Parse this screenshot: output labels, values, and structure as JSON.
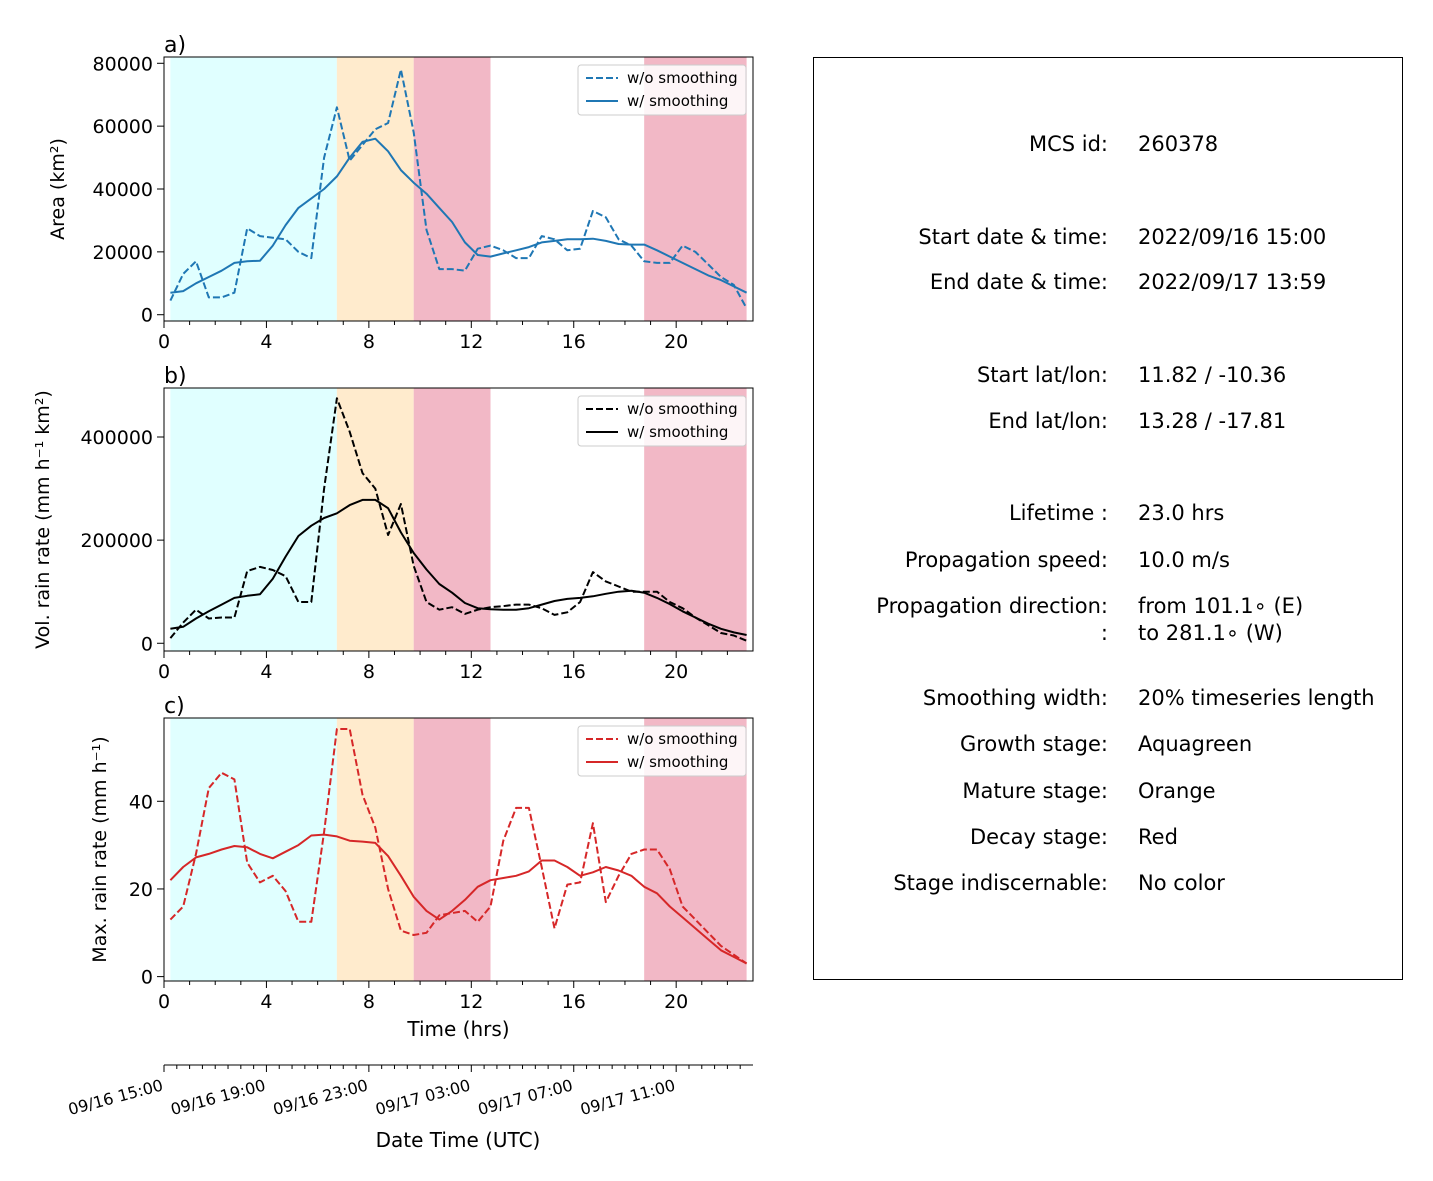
{
  "chart_data": [
    {
      "type": "line",
      "panel_label": "a)",
      "ylabel": "Area  (km²)",
      "xlim": [
        0,
        23
      ],
      "ylim": [
        -2000,
        82000
      ],
      "xticks": [
        "0",
        "4",
        "8",
        "12",
        "16",
        "20"
      ],
      "yticks": [
        "0",
        "20000",
        "40000",
        "60000",
        "80000"
      ],
      "color": "#1f77b4",
      "legend": [
        "w/o smoothing",
        "w/ smoothing"
      ],
      "legend_position": "top-right",
      "stages": [
        {
          "name": "growth",
          "start": 0.25,
          "end": 6.75,
          "color": "#e0ffff"
        },
        {
          "name": "mature",
          "start": 6.75,
          "end": 9.75,
          "color": "#ffebcd"
        },
        {
          "name": "decay",
          "start": 9.75,
          "end": 12.75,
          "color": "#f2b8c6"
        },
        {
          "name": "decay",
          "start": 18.75,
          "end": 22.75,
          "color": "#f2b8c6"
        }
      ],
      "series": [
        {
          "name": "w/o smoothing",
          "style": "dashed",
          "x": [
            0.25,
            0.75,
            1.25,
            1.75,
            2.25,
            2.75,
            3.25,
            3.75,
            4.25,
            4.75,
            5.25,
            5.75,
            6.25,
            6.75,
            7.25,
            7.75,
            8.25,
            8.75,
            9.25,
            9.75,
            10.25,
            10.75,
            11.25,
            11.75,
            12.25,
            12.75,
            13.25,
            13.75,
            14.25,
            14.75,
            15.25,
            15.75,
            16.25,
            16.75,
            17.25,
            17.75,
            18.25,
            18.75,
            19.25,
            19.75,
            20.25,
            20.75,
            21.25,
            21.75,
            22.25,
            22.75
          ],
          "y": [
            4500,
            13000,
            17000,
            5500,
            5500,
            7000,
            27500,
            25000,
            24500,
            24000,
            20000,
            18000,
            50000,
            66000,
            49000,
            54000,
            59000,
            61000,
            78000,
            58000,
            27000,
            14500,
            14500,
            14000,
            21000,
            22000,
            20500,
            18000,
            18000,
            25000,
            24000,
            20500,
            21000,
            33000,
            31000,
            24000,
            22000,
            17000,
            16500,
            16500,
            22000,
            20000,
            16000,
            12000,
            9500,
            2000
          ]
        },
        {
          "name": "w/ smoothing",
          "style": "solid",
          "x": [
            0.25,
            0.75,
            1.25,
            1.75,
            2.25,
            2.75,
            3.25,
            3.75,
            4.25,
            4.75,
            5.25,
            5.75,
            6.25,
            6.75,
            7.25,
            7.75,
            8.25,
            8.75,
            9.25,
            9.75,
            10.25,
            10.75,
            11.25,
            11.75,
            12.25,
            12.75,
            13.25,
            13.75,
            14.25,
            14.75,
            15.25,
            15.75,
            16.25,
            16.75,
            17.25,
            17.75,
            18.25,
            18.75,
            19.25,
            19.75,
            20.25,
            20.75,
            21.25,
            21.75,
            22.25,
            22.75
          ],
          "y": [
            7000,
            7500,
            10000,
            12000,
            14000,
            16500,
            17000,
            17200,
            22000,
            28500,
            34000,
            37000,
            40000,
            44000,
            50000,
            55000,
            56000,
            52000,
            46000,
            42000,
            38500,
            34000,
            29500,
            23000,
            19000,
            18500,
            19500,
            20500,
            21500,
            23000,
            23500,
            24000,
            24000,
            24200,
            23500,
            22500,
            22300,
            22300,
            20500,
            18500,
            16500,
            14500,
            12500,
            11000,
            9000,
            7000
          ]
        }
      ]
    },
    {
      "type": "line",
      "panel_label": "b)",
      "ylabel": "Vol. rain rate (mm h⁻¹ km²)",
      "xlim": [
        0,
        23
      ],
      "ylim": [
        -15000,
        495000
      ],
      "xticks": [
        "0",
        "4",
        "8",
        "12",
        "16",
        "20"
      ],
      "yticks": [
        "0",
        "200000",
        "400000"
      ],
      "color": "#000000",
      "legend": [
        "w/o smoothing",
        "w/ smoothing"
      ],
      "legend_position": "top-right",
      "stages": [
        {
          "name": "growth",
          "start": 0.25,
          "end": 6.75,
          "color": "#e0ffff"
        },
        {
          "name": "mature",
          "start": 6.75,
          "end": 9.75,
          "color": "#ffebcd"
        },
        {
          "name": "decay",
          "start": 9.75,
          "end": 12.75,
          "color": "#f2b8c6"
        },
        {
          "name": "decay",
          "start": 18.75,
          "end": 22.75,
          "color": "#f2b8c6"
        }
      ],
      "series": [
        {
          "name": "w/o smoothing",
          "style": "dashed",
          "x": [
            0.25,
            0.75,
            1.25,
            1.75,
            2.25,
            2.75,
            3.25,
            3.75,
            4.25,
            4.75,
            5.25,
            5.75,
            6.25,
            6.75,
            7.25,
            7.75,
            8.25,
            8.75,
            9.25,
            9.75,
            10.25,
            10.75,
            11.25,
            11.75,
            12.25,
            12.75,
            13.25,
            13.75,
            14.25,
            14.75,
            15.25,
            15.75,
            16.25,
            16.75,
            17.25,
            17.75,
            18.25,
            18.75,
            19.25,
            19.75,
            20.25,
            20.75,
            21.25,
            21.75,
            22.25,
            22.75
          ],
          "y": [
            10000,
            40000,
            65000,
            48000,
            50000,
            50000,
            140000,
            148000,
            142000,
            130000,
            80000,
            80000,
            300000,
            475000,
            410000,
            330000,
            300000,
            210000,
            270000,
            150000,
            80000,
            65000,
            70000,
            57000,
            65000,
            70000,
            72000,
            75000,
            75000,
            68000,
            55000,
            60000,
            80000,
            138000,
            120000,
            110000,
            100000,
            100000,
            100000,
            80000,
            68000,
            50000,
            35000,
            20000,
            15000,
            5000
          ]
        },
        {
          "name": "w/ smoothing",
          "style": "solid",
          "x": [
            0.25,
            0.75,
            1.25,
            1.75,
            2.25,
            2.75,
            3.25,
            3.75,
            4.25,
            4.75,
            5.25,
            5.75,
            6.25,
            6.75,
            7.25,
            7.75,
            8.25,
            8.75,
            9.25,
            9.75,
            10.25,
            10.75,
            11.25,
            11.75,
            12.25,
            12.75,
            13.25,
            13.75,
            14.25,
            14.75,
            15.25,
            15.75,
            16.25,
            16.75,
            17.25,
            17.75,
            18.25,
            18.75,
            19.25,
            19.75,
            20.25,
            20.75,
            21.25,
            21.75,
            22.25,
            22.75
          ],
          "y": [
            28000,
            32000,
            48000,
            62000,
            75000,
            88000,
            92000,
            95000,
            125000,
            168000,
            208000,
            228000,
            243000,
            252000,
            268000,
            278000,
            278000,
            262000,
            215000,
            175000,
            143000,
            115000,
            98000,
            78000,
            68000,
            66000,
            65000,
            65000,
            68000,
            75000,
            82000,
            86000,
            88000,
            91000,
            96000,
            100000,
            102000,
            98000,
            88000,
            76000,
            62000,
            50000,
            38000,
            28000,
            21000,
            16000
          ]
        }
      ]
    },
    {
      "type": "line",
      "panel_label": "c)",
      "ylabel": "Max. rain rate  (mm h⁻¹)",
      "xlabel": "Time (hrs)",
      "xlim": [
        0,
        23
      ],
      "ylim": [
        -1,
        59
      ],
      "xticks": [
        "0",
        "4",
        "8",
        "12",
        "16",
        "20"
      ],
      "yticks": [
        "0",
        "20",
        "40"
      ],
      "color": "#d62728",
      "legend": [
        "w/o smoothing",
        "w/ smoothing"
      ],
      "legend_position": "top-right",
      "stages": [
        {
          "name": "growth",
          "start": 0.25,
          "end": 6.75,
          "color": "#e0ffff"
        },
        {
          "name": "mature",
          "start": 6.75,
          "end": 9.75,
          "color": "#ffebcd"
        },
        {
          "name": "decay",
          "start": 9.75,
          "end": 12.75,
          "color": "#f2b8c6"
        },
        {
          "name": "decay",
          "start": 18.75,
          "end": 22.75,
          "color": "#f2b8c6"
        }
      ],
      "series": [
        {
          "name": "w/o smoothing",
          "style": "dashed",
          "x": [
            0.25,
            0.75,
            1.25,
            1.75,
            2.25,
            2.75,
            3.25,
            3.75,
            4.25,
            4.75,
            5.25,
            5.75,
            6.25,
            6.75,
            7.25,
            7.75,
            8.25,
            8.75,
            9.25,
            9.75,
            10.25,
            10.75,
            11.25,
            11.75,
            12.25,
            12.75,
            13.25,
            13.75,
            14.25,
            14.75,
            15.25,
            15.75,
            16.25,
            16.75,
            17.25,
            17.75,
            18.25,
            18.75,
            19.25,
            19.75,
            20.25,
            20.75,
            21.25,
            21.75,
            22.25,
            22.75
          ],
          "y": [
            13,
            16,
            28,
            43,
            46.5,
            45,
            26,
            21.5,
            23,
            19.5,
            12.5,
            12.5,
            33,
            56.5,
            56.5,
            41.5,
            34,
            20,
            10.5,
            9.5,
            10,
            14,
            14.5,
            15,
            12.5,
            16,
            31,
            38.5,
            38.5,
            25,
            11,
            21,
            21.5,
            35,
            17,
            23,
            28,
            29,
            29,
            24.5,
            16,
            13,
            10,
            7,
            5,
            3
          ]
        },
        {
          "name": "w/ smoothing",
          "style": "solid",
          "x": [
            0.25,
            0.75,
            1.25,
            1.75,
            2.25,
            2.75,
            3.25,
            3.75,
            4.25,
            4.75,
            5.25,
            5.75,
            6.25,
            6.75,
            7.25,
            7.75,
            8.25,
            8.75,
            9.25,
            9.75,
            10.25,
            10.75,
            11.25,
            11.75,
            12.25,
            12.75,
            13.25,
            13.75,
            14.25,
            14.75,
            15.25,
            15.75,
            16.25,
            16.75,
            17.25,
            17.75,
            18.25,
            18.75,
            19.25,
            19.75,
            20.25,
            20.75,
            21.25,
            21.75,
            22.25,
            22.75
          ],
          "y": [
            22,
            25,
            27.2,
            28,
            29,
            29.8,
            29.5,
            28,
            27,
            28.5,
            30,
            32.2,
            32.4,
            32,
            31,
            30.8,
            30.5,
            27.5,
            23,
            18.2,
            15,
            13,
            15,
            17.5,
            20.5,
            22,
            22.5,
            23,
            24,
            26.5,
            26.5,
            25,
            23,
            23.8,
            25,
            24.2,
            23,
            20.5,
            19,
            16,
            13.5,
            11,
            8.5,
            6,
            4.5,
            3
          ]
        }
      ]
    }
  ],
  "datetime_axis": {
    "label": "Date Time (UTC)",
    "ticks": [
      "09/16 15:00",
      "09/16 19:00",
      "09/16 23:00",
      "09/17 03:00",
      "09/17 07:00",
      "09/17 11:00"
    ]
  },
  "info_box": {
    "rows": [
      {
        "key": "MCS id:",
        "value": "260378"
      },
      {
        "key": "Start date & time:",
        "value": "2022/09/16 15:00"
      },
      {
        "key": "End date & time:",
        "value": "2022/09/17 13:59"
      },
      {
        "key": "Start lat/lon:",
        "value": "11.82 / -10.36"
      },
      {
        "key": "End lat/lon:",
        "value": "13.28 / -17.81"
      },
      {
        "key": "Lifetime :",
        "value": "23.0 hrs"
      },
      {
        "key": "Propagation speed:",
        "value": "10.0 m/s"
      },
      {
        "key": "Propagation direction:",
        "value": "from 101.1∘ (E)"
      },
      {
        "key": ":",
        "value": "to   281.1∘ (W)"
      },
      {
        "key": "Smoothing width:",
        "value": "20% timeseries length"
      },
      {
        "key": "Growth stage:",
        "value": "Aquagreen"
      },
      {
        "key": "Mature stage:",
        "value": "Orange"
      },
      {
        "key": "Decay stage:",
        "value": "Red"
      },
      {
        "key": "Stage indiscernable:",
        "value": "No color"
      }
    ]
  }
}
